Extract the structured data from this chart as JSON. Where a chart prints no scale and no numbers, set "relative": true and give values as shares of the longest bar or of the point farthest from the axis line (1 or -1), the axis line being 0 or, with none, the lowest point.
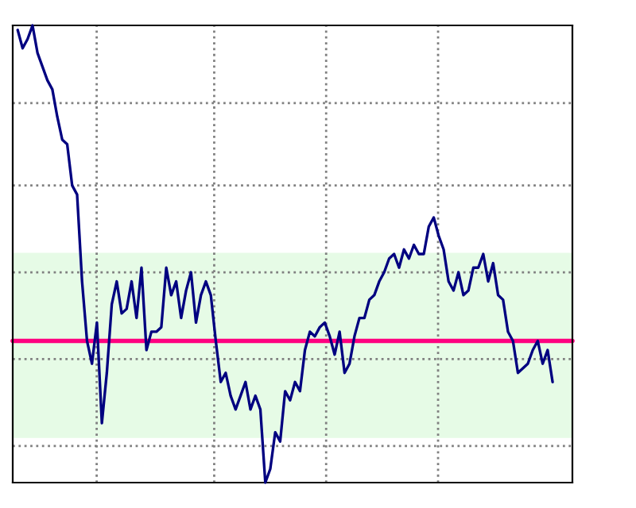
{
  "chart_data": {
    "type": "line",
    "relative": true,
    "grid": true,
    "categories": [
      null,
      null,
      null,
      null,
      null,
      null,
      null,
      null,
      null,
      null,
      null,
      null,
      null,
      null,
      null,
      null,
      null,
      null,
      null,
      null,
      null,
      null,
      null,
      null,
      null,
      null,
      null,
      null,
      null,
      null,
      null,
      null,
      null,
      null,
      null,
      null,
      null,
      null,
      null,
      null,
      null,
      null,
      null,
      null,
      null,
      null,
      null,
      null,
      null,
      null,
      null,
      null,
      null,
      null,
      null,
      null,
      null,
      null,
      null,
      null,
      null,
      null,
      null,
      null,
      null,
      null,
      null,
      null,
      null,
      null,
      null,
      null,
      null,
      null,
      null,
      null,
      null,
      null,
      null,
      null,
      null,
      null,
      null,
      null,
      null,
      null,
      null,
      null,
      null,
      null,
      null,
      null,
      null,
      null,
      null,
      null,
      null,
      null,
      null,
      null,
      null,
      null,
      null,
      null,
      null,
      null,
      null,
      null,
      null
    ],
    "series": [
      {
        "color": "#000080",
        "values": [
          0.99,
          0.95,
          0.97,
          1.0,
          0.94,
          0.91,
          0.88,
          0.86,
          0.8,
          0.75,
          0.74,
          0.65,
          0.63,
          0.44,
          0.31,
          0.26,
          0.35,
          0.13,
          0.24,
          0.39,
          0.44,
          0.37,
          0.38,
          0.44,
          0.36,
          0.47,
          0.29,
          0.33,
          0.33,
          0.34,
          0.47,
          0.41,
          0.44,
          0.36,
          0.42,
          0.46,
          0.35,
          0.41,
          0.44,
          0.41,
          0.31,
          0.22,
          0.24,
          0.19,
          0.16,
          0.19,
          0.22,
          0.16,
          0.19,
          0.16,
          0.0,
          0.03,
          0.11,
          0.09,
          0.2,
          0.18,
          0.22,
          0.2,
          0.29,
          0.33,
          0.32,
          0.34,
          0.35,
          0.32,
          0.28,
          0.33,
          0.24,
          0.26,
          0.32,
          0.36,
          0.36,
          0.4,
          0.41,
          0.44,
          0.46,
          0.49,
          0.5,
          0.47,
          0.51,
          0.49,
          0.52,
          0.5,
          0.5,
          0.56,
          0.58,
          0.54,
          0.51,
          0.44,
          0.42,
          0.46,
          0.41,
          0.42,
          0.47,
          0.47,
          0.5,
          0.44,
          0.48,
          0.41,
          0.4,
          0.33,
          0.31,
          0.24,
          0.25,
          0.26,
          0.29,
          0.31,
          0.26,
          0.29,
          0.22
        ]
      }
    ],
    "ref_lines": [
      {
        "axis": "y",
        "value": 0.31,
        "color": "#ff0080"
      }
    ],
    "bands": [
      {
        "axis": "y",
        "from": 0.1,
        "to": 0.5,
        "color": "#e6fbe6"
      }
    ]
  }
}
